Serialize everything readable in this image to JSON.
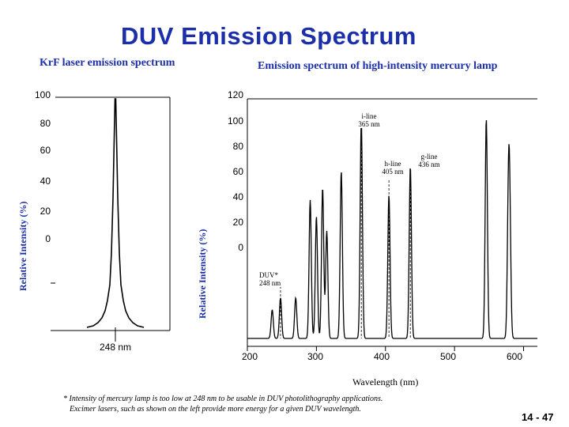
{
  "title": "DUV Emission Spectrum",
  "subtitles": {
    "left": "KrF laser emission spectrum",
    "right": "Emission spectrum of high-intensity mercury lamp"
  },
  "footnote": {
    "line1": "* Intensity of mercury lamp is too low at 248 nm to be usable in DUV photolithography applications.",
    "line2": "Excimer lasers, such as shown on the left provide more energy for a given DUV wavelength."
  },
  "page_number": "14 - 47",
  "colors": {
    "title": "#1c2faa",
    "line": "#000000"
  },
  "chart_data": [
    {
      "type": "line",
      "title": "KrF laser emission spectrum",
      "ylabel": "Relative Intensity (%)",
      "yticks": [
        "100",
        "80",
        "60",
        "40",
        "20",
        "0"
      ],
      "xlabel_center": "248 nm",
      "peak_wavelength_nm": 248
    },
    {
      "type": "line",
      "title": "Emission spectrum of high-intensity mercury lamp",
      "ylabel": "Relative Intensity (%)",
      "xlabel": "Wavelength (nm)",
      "yticks": [
        "120",
        "100",
        "80",
        "60",
        "40",
        "20",
        "0"
      ],
      "xticks": [
        200,
        300,
        400,
        500,
        600
      ],
      "xlim": [
        200,
        620
      ],
      "annotations": [
        {
          "text1": "i-line",
          "text2": "365 nm",
          "x": 365
        },
        {
          "text1": "h-line",
          "text2": "405 nm",
          "x": 405
        },
        {
          "text1": "g-line",
          "text2": "436 nm",
          "x": 436
        },
        {
          "text1": "DUV*",
          "text2": "248 nm",
          "x": 248
        }
      ],
      "peaks": [
        {
          "x": 236,
          "h": 0.12
        },
        {
          "x": 248,
          "h": 0.17
        },
        {
          "x": 270,
          "h": 0.17
        },
        {
          "x": 291,
          "h": 0.58
        },
        {
          "x": 300,
          "h": 0.51
        },
        {
          "x": 309,
          "h": 0.63
        },
        {
          "x": 315,
          "h": 0.45
        },
        {
          "x": 336,
          "h": 0.7
        },
        {
          "x": 365,
          "h": 0.92
        },
        {
          "x": 405,
          "h": 0.6
        },
        {
          "x": 436,
          "h": 0.72
        },
        {
          "x": 546,
          "h": 0.92
        },
        {
          "x": 578,
          "h": 0.52
        },
        {
          "x": 580,
          "h": 0.47
        }
      ]
    }
  ]
}
